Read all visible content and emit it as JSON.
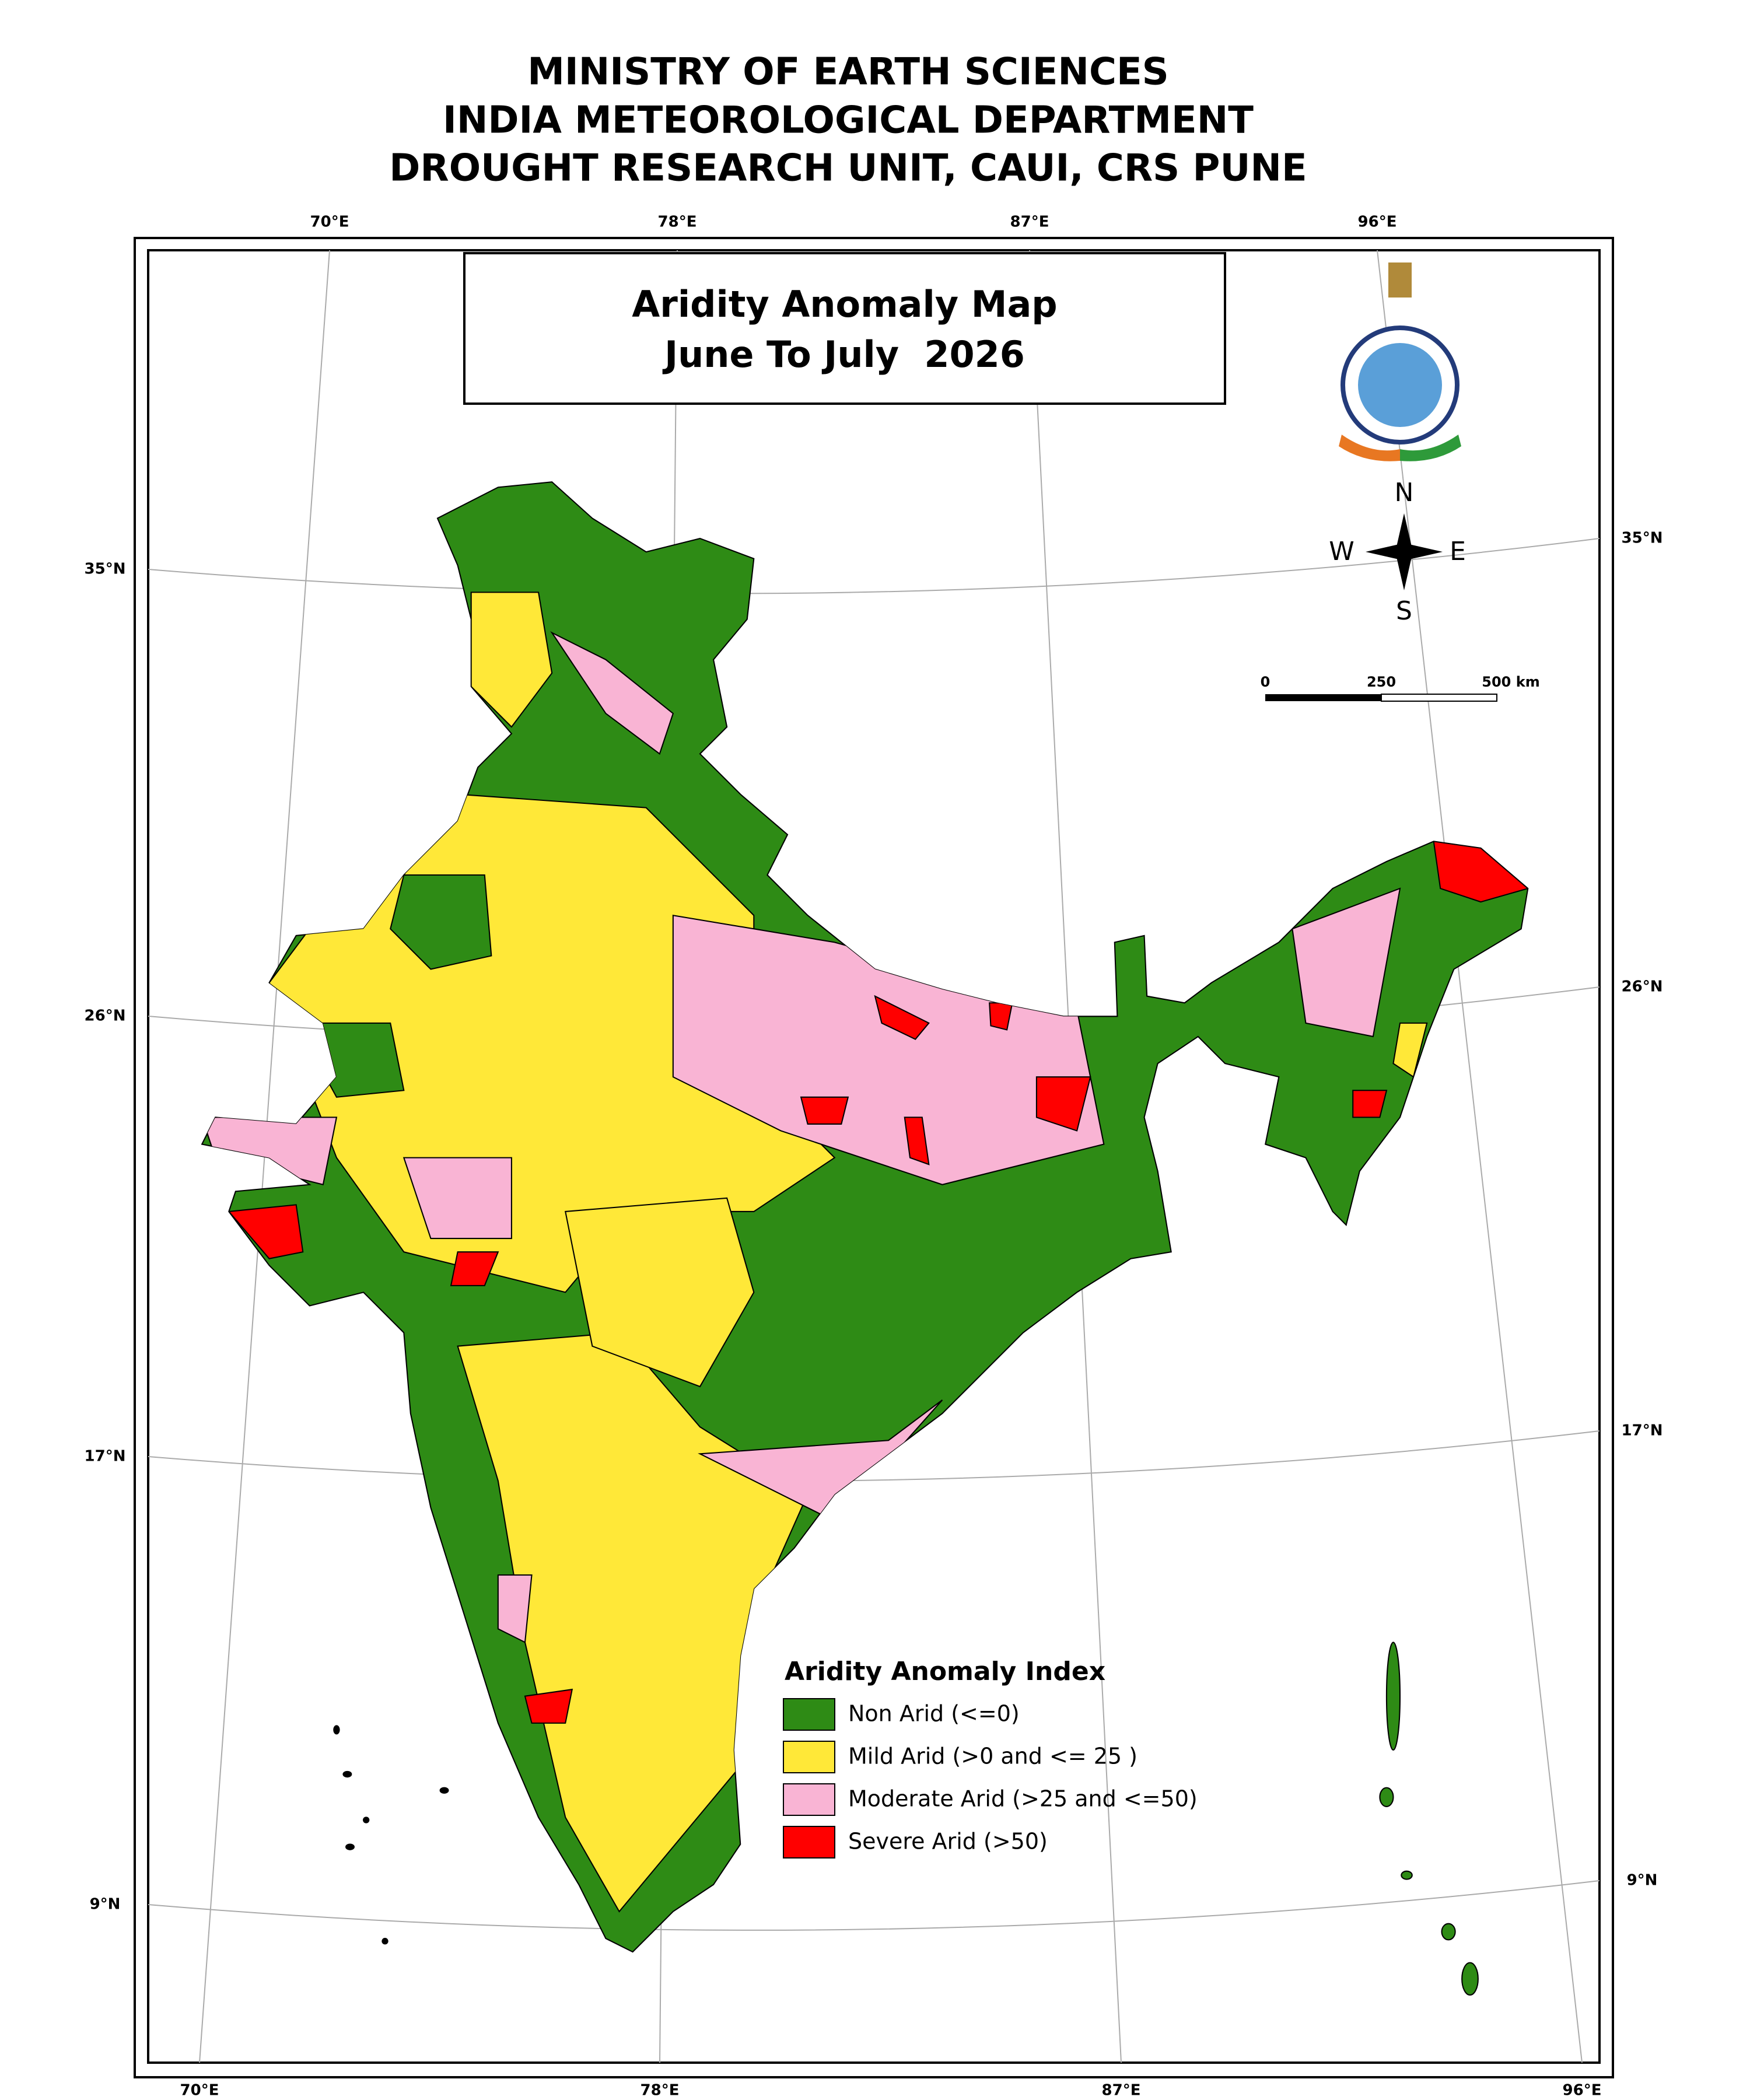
{
  "header": {
    "lines": [
      "MINISTRY OF EARTH SCIENCES",
      "INDIA METEOROLOGICAL DEPARTMENT",
      "DROUGHT RESEARCH UNIT, CAUI, CRS PUNE"
    ]
  },
  "map": {
    "title": "Aridity Anomaly Map",
    "subtitle": "June To July  2026",
    "graticule": {
      "top": [
        "70°E",
        "78°E",
        "87°E",
        "96°E"
      ],
      "bottom": [
        "70°E",
        "78°E",
        "87°E",
        "96°E"
      ],
      "left": [
        "35°N",
        "26°N",
        "17°N",
        "9°N"
      ],
      "right": [
        "35°N",
        "26°N",
        "17°N",
        "9°N"
      ]
    },
    "compass": {
      "n": "N",
      "w": "W",
      "e": "E",
      "s": "S"
    },
    "scale_bar": {
      "labels": [
        "0",
        "250",
        "500 km"
      ]
    },
    "legend": {
      "title": "Aridity Anomaly Index",
      "items": [
        {
          "label": "Non Arid (<=0)",
          "color": "#2e8b15"
        },
        {
          "label": "Mild Arid (>0 and <= 25 )",
          "color": "#ffe838"
        },
        {
          "label": "Moderate Arid (>25 and <=50)",
          "color": "#f9b4d4"
        },
        {
          "label": "Severe Arid (>50)",
          "color": "#ff0000"
        }
      ]
    }
  }
}
